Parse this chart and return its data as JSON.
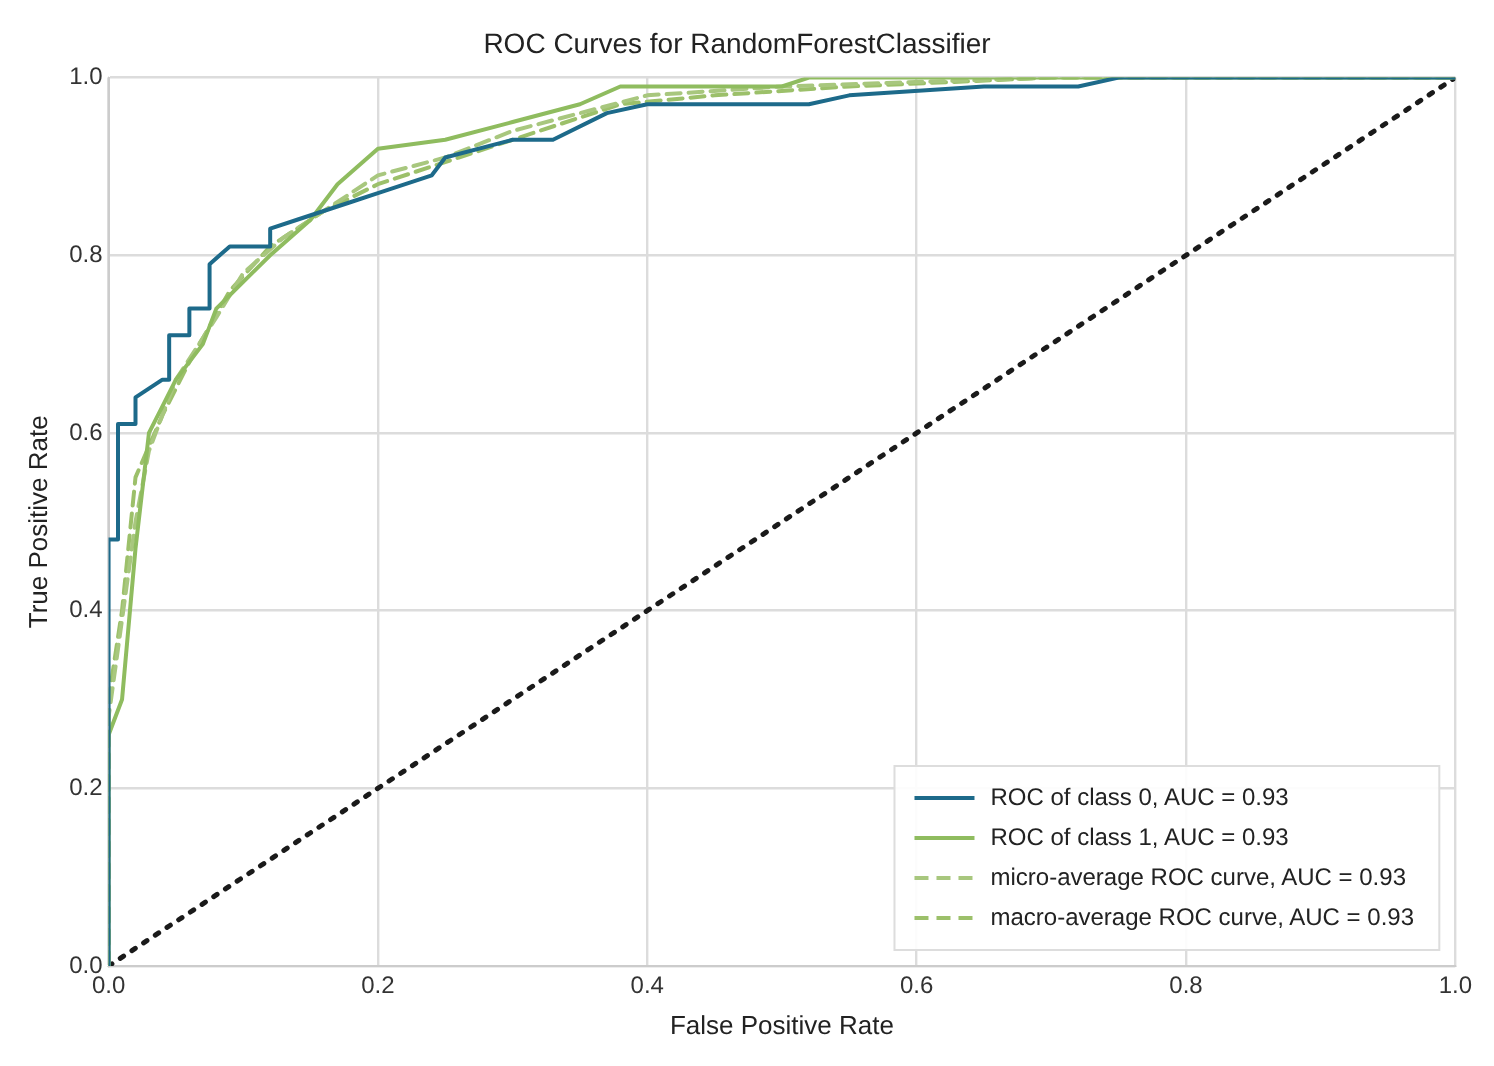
{
  "chart_data": {
    "type": "line",
    "title": "ROC Curves for RandomForestClassifier",
    "xlabel": "False Positive Rate",
    "ylabel": "True Positive Rate",
    "xlim": [
      0,
      1
    ],
    "ylim": [
      0,
      1
    ],
    "xticks": [
      {
        "value": 0,
        "label": "0.0"
      },
      0.2,
      0.4,
      0.6,
      0.8,
      {
        "value": 1,
        "label": "1.0"
      }
    ],
    "yticks": [
      {
        "value": 0,
        "label": "0.0"
      },
      0.2,
      0.4,
      0.6,
      0.8,
      {
        "value": 1,
        "label": "1.0"
      }
    ],
    "grid": true,
    "legend": "bottom right",
    "marker": "none",
    "series": [
      {
        "name": "ROC of class 0, AUC = 0.93",
        "color": "#1d6a8a",
        "line_style": "solid",
        "x": [
          0,
          0,
          0.007,
          0.007,
          0.02,
          0.02,
          0.04,
          0.045,
          0.045,
          0.06,
          0.06,
          0.075,
          0.075,
          0.09,
          0.12,
          0.12,
          0.14,
          0.18,
          0.2,
          0.24,
          0.25,
          0.3,
          0.33,
          0.37,
          0.4,
          0.52,
          0.55,
          0.65,
          0.72,
          0.75,
          1
        ],
        "values": [
          0,
          0.48,
          0.48,
          0.61,
          0.61,
          0.64,
          0.66,
          0.66,
          0.71,
          0.71,
          0.74,
          0.74,
          0.79,
          0.81,
          0.81,
          0.83,
          0.84,
          0.86,
          0.87,
          0.89,
          0.91,
          0.93,
          0.93,
          0.96,
          0.97,
          0.97,
          0.98,
          0.99,
          0.99,
          1,
          1
        ]
      },
      {
        "name": "ROC of class 1, AUC = 0.93",
        "color": "#8fbc5f",
        "line_style": "solid",
        "x": [
          0,
          0,
          0.01,
          0.02,
          0.03,
          0.04,
          0.05,
          0.07,
          0.08,
          0.1,
          0.12,
          0.15,
          0.17,
          0.2,
          0.25,
          0.3,
          0.35,
          0.38,
          0.5,
          0.52,
          1
        ],
        "values": [
          0,
          0.26,
          0.3,
          0.47,
          0.6,
          0.63,
          0.66,
          0.7,
          0.74,
          0.77,
          0.8,
          0.84,
          0.88,
          0.92,
          0.93,
          0.95,
          0.97,
          0.99,
          0.99,
          1,
          1
        ]
      },
      {
        "name": "micro-average ROC curve, AUC = 0.93",
        "color": "#a8c77e",
        "line_style": "dashed",
        "x": [
          0,
          0,
          0.02,
          0.03,
          0.05,
          0.08,
          0.1,
          0.13,
          0.17,
          0.2,
          0.25,
          0.3,
          0.35,
          0.4,
          0.5,
          0.7,
          1
        ],
        "values": [
          0,
          0.28,
          0.5,
          0.58,
          0.66,
          0.73,
          0.78,
          0.82,
          0.86,
          0.89,
          0.91,
          0.94,
          0.96,
          0.98,
          0.99,
          1,
          1
        ]
      },
      {
        "name": "macro-average ROC curve, AUC = 0.93",
        "color": "#9cc06a",
        "line_style": "dashed",
        "x": [
          0,
          0,
          0.01,
          0.02,
          0.04,
          0.06,
          0.09,
          0.12,
          0.16,
          0.2,
          0.26,
          0.32,
          0.38,
          0.45,
          0.55,
          0.7,
          1
        ],
        "values": [
          0,
          0.3,
          0.4,
          0.55,
          0.62,
          0.68,
          0.76,
          0.81,
          0.85,
          0.88,
          0.91,
          0.94,
          0.97,
          0.98,
          0.99,
          1,
          1
        ]
      },
      {
        "color": "#1a1a1a",
        "line_style": "dotted",
        "x": [
          0,
          1
        ],
        "values": [
          0,
          1
        ]
      }
    ]
  }
}
